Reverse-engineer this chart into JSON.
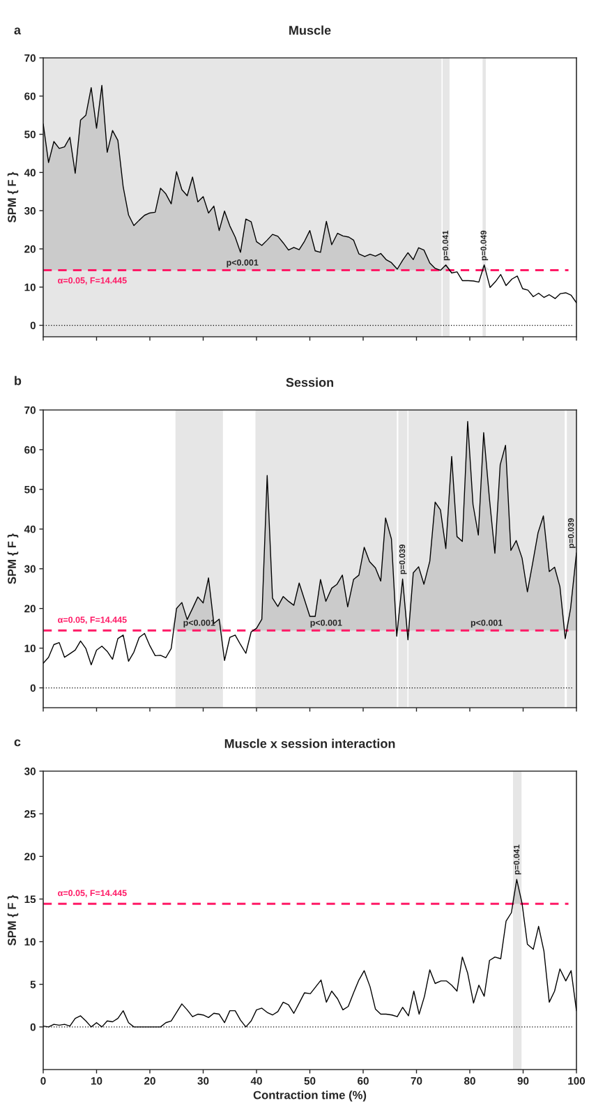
{
  "chart_data": [
    {
      "type": "line",
      "title": "Muscle",
      "ylabel": "SPM { F }",
      "annotations": [
        "a"
      ],
      "x": [
        0,
        1,
        2,
        3,
        4,
        5,
        6,
        7,
        8,
        9,
        10,
        11,
        12,
        13,
        14,
        15,
        16,
        17,
        18,
        19,
        20,
        21,
        22,
        23,
        24,
        25,
        26,
        27,
        28,
        29,
        30,
        31,
        32,
        33,
        34,
        35,
        36,
        37,
        38,
        39,
        40,
        41,
        42,
        43,
        44,
        45,
        46,
        47,
        48,
        49.0,
        50.0,
        51.0,
        52.0,
        53.1,
        54.1,
        55.2,
        56.2,
        57.3,
        58.2,
        59.2,
        60.3,
        61.3,
        62.3,
        63.3,
        64.3,
        65.3,
        66.4,
        67.4,
        68.4,
        69.4,
        70.4,
        71.4,
        72.5,
        73.5,
        74.5,
        75.5,
        76.6,
        77.6,
        78.6,
        79.7,
        80.7,
        81.7,
        82.7,
        83.8,
        84.8,
        85.8,
        86.8,
        87.9,
        88.9,
        89.9,
        90.9,
        91.9,
        92.9,
        93.9,
        94.9,
        96.0,
        97.0,
        98.0,
        99.0,
        100.0
      ],
      "series": [
        {
          "color": "#000000",
          "lower": [
            14.445,
            14.445,
            14.445,
            14.445,
            14.445,
            14.445,
            14.445,
            14.445,
            14.445,
            14.445,
            14.445,
            14.445,
            14.445,
            14.445,
            14.445,
            14.445,
            14.445,
            14.445,
            14.445,
            14.445,
            14.445,
            14.445,
            14.445,
            14.445,
            14.445,
            14.445,
            14.445,
            14.445,
            14.445,
            14.445,
            14.445,
            14.445,
            14.445,
            14.445,
            14.445,
            14.445,
            14.445,
            14.445,
            14.445,
            14.445,
            14.445,
            14.445,
            14.445,
            14.445,
            14.445,
            14.445,
            14.445,
            14.445,
            14.445,
            14.445,
            14.445,
            14.445,
            14.445,
            14.445,
            14.445,
            14.445,
            14.445,
            14.445,
            14.445,
            14.445,
            14.445,
            14.445,
            14.445,
            14.445,
            14.445,
            14.445,
            14.445,
            14.445,
            14.445,
            14.445,
            14.445,
            14.445,
            14.445,
            14.445,
            14.445,
            14.445,
            14.445,
            null,
            null,
            null,
            null,
            14.445,
            14.445,
            14.445,
            null,
            null,
            null,
            null,
            null,
            null,
            null,
            null,
            null,
            null,
            null,
            null,
            null,
            null,
            null,
            null
          ],
          "upper": [
            52.7,
            42.6,
            48.1,
            46.3,
            46.7,
            49.2,
            39.8,
            53.7,
            55.0,
            62.2,
            51.6,
            62.8,
            45.3,
            51.0,
            48.4,
            36.2,
            28.9,
            26.1,
            27.5,
            28.8,
            29.4,
            29.6,
            35.9,
            34.4,
            31.8,
            40.2,
            35.5,
            33.9,
            38.8,
            32.3,
            33.7,
            29.4,
            31.2,
            24.8,
            29.9,
            26.0,
            23.1,
            19.1,
            27.8,
            27.1,
            21.9,
            20.9,
            22.3,
            23.8,
            23.3,
            21.6,
            19.7,
            20.4,
            19.8,
            22.0,
            24.8,
            19.5,
            19.1,
            27.2,
            21.1,
            24.1,
            23.4,
            23.1,
            22.3,
            18.7,
            18.0,
            18.6,
            18.1,
            18.8,
            17.2,
            16.4,
            14.7,
            17.0,
            19.0,
            17.2,
            20.3,
            19.7,
            16.3,
            14.9,
            14.445,
            15.8,
            14.445,
            null,
            null,
            null,
            null,
            14.445,
            15.8,
            14.445,
            null,
            null,
            null,
            null,
            null,
            null,
            null,
            null,
            null,
            null,
            null,
            null,
            null,
            null,
            null,
            null
          ],
          "values": [
            52.7,
            42.6,
            48.1,
            46.3,
            46.7,
            49.2,
            39.8,
            53.7,
            55.0,
            62.2,
            51.6,
            62.8,
            45.3,
            51.0,
            48.4,
            36.2,
            28.9,
            26.1,
            27.5,
            28.8,
            29.4,
            29.6,
            35.9,
            34.4,
            31.8,
            40.2,
            35.5,
            33.9,
            38.8,
            32.3,
            33.7,
            29.4,
            31.2,
            24.8,
            29.9,
            26.0,
            23.1,
            19.1,
            27.8,
            27.1,
            21.9,
            20.9,
            22.3,
            23.8,
            23.3,
            21.6,
            19.7,
            20.4,
            19.8,
            22.0,
            24.8,
            19.5,
            19.1,
            27.2,
            21.1,
            24.1,
            23.4,
            23.1,
            22.3,
            18.7,
            18.0,
            18.6,
            18.1,
            18.8,
            17.2,
            16.4,
            14.7,
            17.0,
            19.0,
            17.2,
            20.3,
            19.7,
            16.3,
            14.9,
            14.4,
            15.8,
            13.7,
            14.0,
            11.7,
            11.7,
            11.6,
            11.3,
            15.8,
            9.9,
            11.4,
            13.3,
            10.4,
            12.1,
            12.9,
            9.6,
            9.2,
            7.5,
            8.4,
            7.3,
            8.0,
            7.0,
            8.3,
            8.5,
            7.9,
            5.9
          ]
        }
      ],
      "xlim": [
        0,
        100
      ],
      "ylim": [
        -3,
        70
      ],
      "xticks": [
        0,
        10,
        20,
        30,
        40,
        50,
        60,
        70,
        80,
        90,
        100
      ],
      "yticks": [
        0,
        10,
        20,
        30,
        40,
        50,
        60,
        70
      ],
      "ref_lines": [
        {
          "axis": "y",
          "value": 14.445,
          "label": "α=0.05, F=14.445",
          "color": "#ff1a66",
          "line_style": "dashed"
        },
        {
          "axis": "y",
          "value": 0,
          "color": "#000000",
          "line_style": "dotted"
        }
      ],
      "bands": [
        {
          "axis": "x",
          "from": 0,
          "to": 74.7,
          "color": "#e6e6e6",
          "label": "p<0.001"
        },
        {
          "axis": "x",
          "from": 74.9,
          "to": 76.2,
          "color": "#e6e6e6",
          "label": "p=0.041"
        },
        {
          "axis": "x",
          "from": 82.4,
          "to": 83.0,
          "color": "#e6e6e6",
          "label": "p=0.049"
        }
      ],
      "tick_labels": "y",
      "grid": false
    },
    {
      "type": "line",
      "title": "Session",
      "ylabel": "SPM { F }",
      "annotations": [
        "b"
      ],
      "x": [
        0,
        1,
        2,
        3,
        4,
        5,
        6,
        7,
        8,
        9,
        10,
        11,
        12,
        13,
        14,
        15,
        16,
        17,
        18,
        19,
        20,
        21,
        22,
        23,
        24,
        25,
        26,
        27,
        28,
        29,
        30,
        31,
        32,
        33,
        34,
        35,
        36,
        37,
        38,
        39,
        40,
        41,
        42,
        43,
        44,
        45,
        46,
        47,
        48.0,
        50.0,
        51.0,
        52.0,
        53.0,
        54.1,
        55.1,
        56.1,
        57.1,
        58.2,
        59.2,
        60.2,
        61.2,
        62.3,
        63.3,
        64.2,
        65.3,
        66.3,
        67.4,
        68.4,
        69.4,
        70.4,
        71.4,
        72.5,
        73.5,
        74.5,
        75.5,
        76.6,
        77.6,
        78.6,
        79.6,
        80.6,
        81.6,
        82.6,
        83.7,
        84.7,
        85.7,
        86.7,
        87.7,
        88.7,
        89.8,
        90.8,
        91.8,
        92.8,
        93.8,
        94.9,
        95.9,
        96.9,
        97.9,
        98.9,
        100.0
      ],
      "series": [
        {
          "color": "#000000",
          "lower": [
            null,
            null,
            null,
            null,
            null,
            null,
            null,
            null,
            null,
            null,
            null,
            null,
            null,
            null,
            null,
            null,
            null,
            null,
            null,
            null,
            null,
            null,
            null,
            null,
            14.445,
            14.445,
            14.445,
            14.445,
            14.445,
            14.445,
            14.445,
            14.445,
            14.445,
            14.445,
            14.445,
            null,
            null,
            null,
            null,
            14.445,
            14.445,
            14.445,
            14.445,
            14.445,
            14.445,
            14.445,
            14.445,
            14.445,
            14.445,
            14.445,
            14.445,
            14.445,
            14.445,
            14.445,
            14.445,
            14.445,
            14.445,
            14.445,
            14.445,
            14.445,
            14.445,
            14.445,
            14.445,
            14.445,
            14.445,
            14.445,
            14.445,
            14.445,
            14.445,
            14.445,
            14.445,
            14.445,
            14.445,
            14.445,
            14.445,
            14.445,
            14.445,
            14.445,
            14.445,
            14.445,
            14.445,
            14.445,
            14.445,
            14.445,
            14.445,
            14.445,
            14.445,
            14.445,
            14.445,
            14.445,
            14.445,
            14.445,
            14.445,
            14.445,
            14.445,
            14.445,
            14.445,
            14.445,
            14.445
          ],
          "upper": [
            null,
            null,
            null,
            null,
            null,
            null,
            null,
            null,
            null,
            null,
            null,
            null,
            null,
            null,
            null,
            null,
            null,
            null,
            null,
            null,
            null,
            null,
            null,
            null,
            14.445,
            20.0,
            21.5,
            17.2,
            20.0,
            22.9,
            21.4,
            27.7,
            16.2,
            17.3,
            14.445,
            null,
            null,
            null,
            null,
            14.445,
            15.0,
            17.3,
            53.5,
            22.6,
            20.5,
            23.0,
            21.8,
            20.8,
            26.4,
            18.0,
            18.0,
            27.3,
            21.8,
            25.1,
            26.1,
            28.4,
            20.4,
            27.3,
            28.4,
            35.4,
            31.8,
            30.2,
            26.9,
            42.8,
            37.5,
            14.445,
            27.4,
            14.445,
            29.0,
            30.5,
            26.1,
            31.9,
            46.8,
            44.8,
            35.1,
            58.3,
            38.1,
            36.9,
            67.1,
            46.2,
            38.5,
            64.3,
            47.4,
            33.9,
            56.2,
            61.1,
            34.6,
            37.1,
            32.7,
            24.2,
            31.5,
            39.1,
            43.3,
            29.3,
            30.4,
            25.5,
            14.445,
            20.0,
            34.0
          ],
          "values": [
            6.2,
            7.7,
            10.9,
            11.4,
            7.7,
            8.6,
            9.5,
            11.8,
            9.9,
            5.8,
            9.5,
            10.5,
            9.2,
            7.2,
            12.4,
            13.3,
            6.7,
            9.0,
            12.7,
            13.7,
            10.6,
            8.1,
            8.2,
            7.6,
            9.9,
            20.0,
            21.5,
            17.2,
            20.0,
            22.9,
            21.4,
            27.7,
            16.2,
            17.3,
            6.9,
            12.7,
            13.3,
            10.9,
            8.7,
            14.1,
            15.0,
            17.3,
            53.5,
            22.6,
            20.5,
            23.0,
            21.8,
            20.8,
            26.4,
            18.0,
            18.0,
            27.3,
            21.8,
            25.1,
            26.1,
            28.4,
            20.4,
            27.3,
            28.4,
            35.4,
            31.8,
            30.2,
            26.9,
            42.8,
            37.5,
            13.0,
            27.4,
            12.1,
            29.0,
            30.5,
            26.1,
            31.9,
            46.8,
            44.8,
            35.1,
            58.3,
            38.1,
            36.9,
            67.1,
            46.2,
            38.5,
            64.3,
            47.4,
            33.9,
            56.2,
            61.1,
            34.6,
            37.1,
            32.7,
            24.2,
            31.5,
            39.1,
            43.3,
            29.3,
            30.4,
            25.5,
            12.4,
            20.0,
            34.0
          ]
        }
      ],
      "xlim": [
        0,
        100
      ],
      "ylim": [
        -5,
        70
      ],
      "xticks": [
        0,
        10,
        20,
        30,
        40,
        50,
        60,
        70,
        80,
        90,
        100
      ],
      "yticks": [
        0,
        10,
        20,
        30,
        40,
        50,
        60,
        70
      ],
      "ref_lines": [
        {
          "axis": "y",
          "value": 14.445,
          "label": "α=0.05, F=14.445",
          "color": "#ff1a66",
          "line_style": "dashed"
        },
        {
          "axis": "y",
          "value": 0,
          "color": "#000000",
          "line_style": "dotted"
        }
      ],
      "bands": [
        {
          "axis": "x",
          "from": 24.8,
          "to": 33.7,
          "color": "#e6e6e6",
          "label": "p<0.001"
        },
        {
          "axis": "x",
          "from": 39.8,
          "to": 66.3,
          "color": "#e6e6e6",
          "label": "p<0.001"
        },
        {
          "axis": "x",
          "from": 66.6,
          "to": 68.3,
          "color": "#e6e6e6",
          "label": "p=0.039"
        },
        {
          "axis": "x",
          "from": 68.5,
          "to": 97.8,
          "color": "#e6e6e6",
          "label": "p<0.001"
        },
        {
          "axis": "x",
          "from": 98.2,
          "to": 100,
          "color": "#e6e6e6",
          "label": "p=0.039"
        }
      ],
      "tick_labels": "y",
      "grid": false
    },
    {
      "type": "line",
      "title": "Muscle x session interaction",
      "ylabel": "SPM { F }",
      "xlabel": "Contraction time (%)",
      "annotations": [
        "c"
      ],
      "x": [
        0,
        1,
        2,
        3,
        4,
        5,
        6,
        7,
        8,
        9,
        10,
        11,
        12,
        13,
        14,
        15,
        16,
        17,
        18,
        19,
        20,
        21,
        22,
        23,
        24,
        25,
        26,
        27,
        28,
        29,
        30,
        31,
        32,
        33,
        34,
        35,
        36,
        37,
        38,
        39,
        40,
        41,
        42,
        43,
        44,
        45,
        46,
        47.0,
        48.0,
        49.0,
        50.1,
        51.1,
        52.1,
        53.1,
        54.1,
        55.2,
        56.2,
        57.2,
        58.2,
        59.2,
        60.2,
        61.3,
        62.3,
        63.3,
        64.3,
        65.4,
        66.4,
        67.4,
        68.5,
        69.5,
        70.5,
        71.5,
        72.5,
        73.5,
        74.6,
        75.6,
        76.6,
        77.6,
        78.6,
        79.6,
        80.7,
        81.7,
        82.7,
        83.7,
        84.7,
        85.8,
        86.8,
        87.8,
        88.8,
        89.8,
        90.8,
        91.9,
        92.9,
        93.9,
        94.9,
        95.9,
        96.9,
        98.0,
        99.0,
        100.0
      ],
      "series": [
        {
          "color": "#000000",
          "lower": [
            null,
            null,
            null,
            null,
            null,
            null,
            null,
            null,
            null,
            null,
            null,
            null,
            null,
            null,
            null,
            null,
            null,
            null,
            null,
            null,
            null,
            null,
            null,
            null,
            null,
            null,
            null,
            null,
            null,
            null,
            null,
            null,
            null,
            null,
            null,
            null,
            null,
            null,
            null,
            null,
            null,
            null,
            null,
            null,
            null,
            null,
            null,
            null,
            null,
            null,
            null,
            null,
            null,
            null,
            null,
            null,
            null,
            null,
            null,
            null,
            null,
            null,
            null,
            null,
            null,
            null,
            null,
            null,
            null,
            null,
            null,
            null,
            null,
            null,
            null,
            null,
            null,
            null,
            null,
            null,
            null,
            null,
            null,
            null,
            null,
            null,
            null,
            14.445,
            14.445,
            14.445,
            14.445,
            null,
            null,
            null,
            null,
            null,
            null,
            null,
            null,
            null
          ],
          "upper": [
            null,
            null,
            null,
            null,
            null,
            null,
            null,
            null,
            null,
            null,
            null,
            null,
            null,
            null,
            null,
            null,
            null,
            null,
            null,
            null,
            null,
            null,
            null,
            null,
            null,
            null,
            null,
            null,
            null,
            null,
            null,
            null,
            null,
            null,
            null,
            null,
            null,
            null,
            null,
            null,
            null,
            null,
            null,
            null,
            null,
            null,
            null,
            null,
            null,
            null,
            null,
            null,
            null,
            null,
            null,
            null,
            null,
            null,
            null,
            null,
            null,
            null,
            null,
            null,
            null,
            null,
            null,
            null,
            null,
            null,
            null,
            null,
            null,
            null,
            null,
            null,
            null,
            null,
            null,
            null,
            null,
            null,
            null,
            null,
            null,
            null,
            null,
            14.445,
            17.3,
            14.5,
            14.445,
            null,
            null,
            null,
            null,
            null,
            null,
            null,
            null,
            null
          ],
          "values": [
            0.1,
            0,
            0.3,
            0.2,
            0.3,
            0.1,
            1.0,
            1.3,
            0.7,
            0,
            0.5,
            0,
            0.7,
            0.6,
            1.0,
            1.9,
            0.5,
            0,
            0,
            0,
            0,
            0,
            0,
            0.5,
            0.7,
            1.7,
            2.7,
            2.0,
            1.2,
            1.5,
            1.4,
            1.1,
            1.6,
            1.5,
            0.5,
            1.9,
            1.9,
            0.8,
            0,
            0.7,
            2.0,
            2.2,
            1.7,
            1.4,
            1.8,
            2.9,
            2.6,
            1.6,
            2.8,
            4.0,
            3.9,
            4.7,
            5.5,
            2.9,
            4.2,
            3.3,
            2.0,
            2.4,
            4.0,
            5.5,
            6.6,
            4.7,
            2.1,
            1.5,
            1.5,
            1.4,
            1.2,
            2.3,
            1.3,
            4.2,
            1.5,
            3.6,
            6.7,
            5.1,
            5.4,
            5.4,
            4.9,
            4.2,
            8.2,
            6.3,
            2.8,
            4.9,
            3.6,
            7.8,
            8.2,
            8.0,
            12.4,
            13.4,
            17.3,
            14.5,
            9.7,
            9.1,
            11.8,
            8.9,
            2.9,
            4.2,
            6.8,
            5.4,
            6.6,
            1.9
          ]
        }
      ],
      "xlim": [
        0,
        100
      ],
      "ylim": [
        -5,
        30
      ],
      "xticks": [
        0,
        10,
        20,
        30,
        40,
        50,
        60,
        70,
        80,
        90,
        100
      ],
      "yticks": [
        0,
        5,
        10,
        15,
        20,
        25,
        30
      ],
      "ref_lines": [
        {
          "axis": "y",
          "value": 14.445,
          "label": "α=0.05, F=14.445",
          "color": "#ff1a66",
          "line_style": "dashed"
        },
        {
          "axis": "y",
          "value": 0,
          "color": "#000000",
          "line_style": "dotted"
        }
      ],
      "bands": [
        {
          "axis": "x",
          "from": 88.1,
          "to": 89.7,
          "color": "#e6e6e6",
          "label": "p=0.041"
        }
      ],
      "grid": false
    }
  ]
}
